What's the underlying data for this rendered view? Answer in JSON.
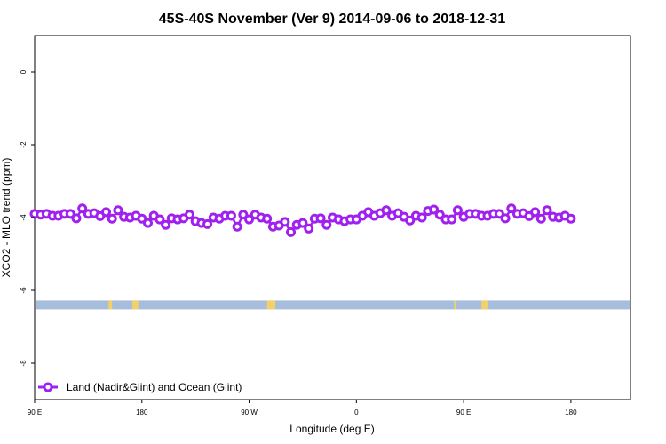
{
  "chart_data": {
    "type": "line",
    "title": "45S-40S November (Ver 9)   2014-09-06 to 2018-12-31",
    "xlabel": "Longitude (deg E)",
    "ylabel": "XCO2 - MLO trend (ppm)",
    "xlim": [
      90,
      590
    ],
    "ylim": [
      -9,
      1
    ],
    "x_ticks": [
      {
        "value": 90,
        "label": "90 E"
      },
      {
        "value": 180,
        "label": "180"
      },
      {
        "value": 270,
        "label": "90 W"
      },
      {
        "value": 360,
        "label": "0"
      },
      {
        "value": 450,
        "label": "90 E"
      },
      {
        "value": 540,
        "label": "180"
      }
    ],
    "y_ticks": [
      0,
      -2,
      -4,
      -6,
      -8
    ],
    "grid": false,
    "legend_position": "bottom-left",
    "series": [
      {
        "name": "Land (Nadir&Glint) and Ocean (Glint)",
        "color": "#a020f0",
        "marker": "open-circle",
        "x": [
          90,
          95,
          100,
          105,
          110,
          115,
          120,
          125,
          130,
          135,
          140,
          145,
          150,
          155,
          160,
          165,
          170,
          175,
          180,
          185,
          190,
          195,
          200,
          205,
          210,
          215,
          220,
          225,
          230,
          235,
          240,
          245,
          250,
          255,
          260,
          265,
          270,
          275,
          280,
          285,
          290,
          295,
          300,
          305,
          310,
          315,
          320,
          325,
          330,
          335,
          340,
          345,
          350,
          355,
          360,
          365,
          370,
          375,
          380,
          385,
          390,
          395,
          400,
          405,
          410,
          415,
          420,
          425,
          430,
          435,
          440,
          445,
          450,
          455,
          460,
          465,
          470,
          475,
          480,
          485,
          490,
          495,
          500,
          505,
          510,
          515,
          520,
          525,
          530,
          535,
          540
        ],
        "y": [
          -3.9,
          -3.92,
          -3.9,
          -3.95,
          -3.95,
          -3.9,
          -3.9,
          -4.02,
          -3.75,
          -3.9,
          -3.88,
          -3.96,
          -3.85,
          -4.03,
          -3.8,
          -3.98,
          -4.0,
          -3.95,
          -4.03,
          -4.15,
          -3.95,
          -4.05,
          -4.2,
          -4.02,
          -4.05,
          -4.02,
          -3.92,
          -4.1,
          -4.15,
          -4.18,
          -4.0,
          -4.03,
          -3.95,
          -3.95,
          -4.25,
          -3.92,
          -4.05,
          -3.92,
          -4.0,
          -4.03,
          -4.25,
          -4.22,
          -4.12,
          -4.4,
          -4.2,
          -4.15,
          -4.3,
          -4.03,
          -4.02,
          -4.2,
          -4.0,
          -4.05,
          -4.1,
          -4.05,
          -4.05,
          -3.95,
          -3.85,
          -3.95,
          -3.88,
          -3.8,
          -3.95,
          -3.88,
          -3.98,
          -4.08,
          -3.95,
          -4.0,
          -3.82,
          -3.78,
          -3.92,
          -4.05,
          -4.05,
          -3.8,
          -3.98,
          -3.9,
          -3.9,
          -3.95,
          -3.95,
          -3.9,
          -3.9,
          -4.02,
          -3.75,
          -3.9,
          -3.88,
          -3.96,
          -3.85,
          -4.03,
          -3.8,
          -3.98,
          -4.0,
          -3.95,
          -4.03
        ]
      }
    ],
    "land_ocean_band": {
      "y": -6.4,
      "ocean_color": "#a6bddb",
      "land_color": "#f2d06b",
      "land_segments": [
        [
          152,
          155
        ],
        [
          172,
          177
        ],
        [
          285,
          292
        ],
        [
          442,
          444
        ],
        [
          465,
          470
        ]
      ]
    }
  }
}
